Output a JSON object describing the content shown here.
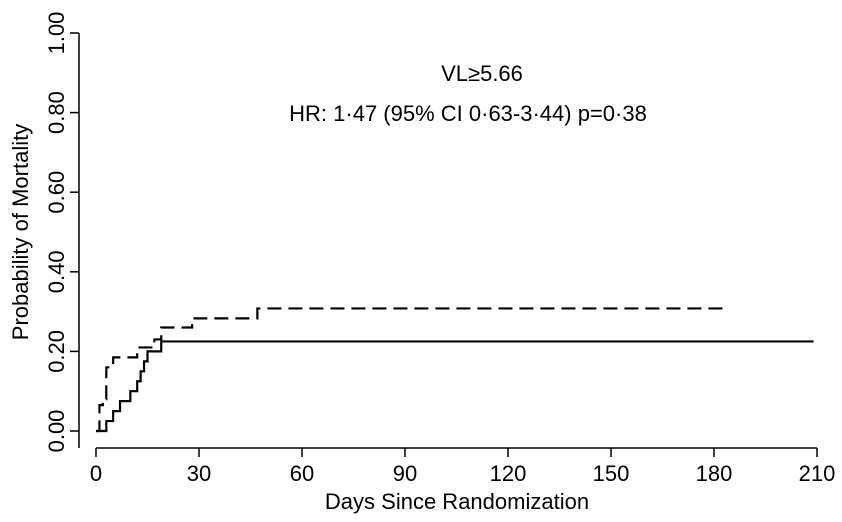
{
  "chart_data": {
    "type": "line",
    "title": "VL≥5.66",
    "subtitle": "HR: 1·47 (95% CI 0·63-3·44) p=0·38",
    "xlabel": "Days Since Randomization",
    "ylabel": "Probability of Mortality",
    "xlim": [
      0,
      210
    ],
    "ylim": [
      0,
      1
    ],
    "grid": false,
    "x_ticks": [
      0,
      30,
      60,
      90,
      120,
      150,
      180,
      210
    ],
    "x_tick_labels": [
      "0",
      "30",
      "60",
      "90",
      "120",
      "150",
      "180",
      "210"
    ],
    "y_ticks": [
      0,
      0.2,
      0.4,
      0.6,
      0.8,
      1.0
    ],
    "y_tick_labels": [
      "0.00",
      "0.20",
      "0.40",
      "0.60",
      "0.80",
      "1.00"
    ],
    "series": [
      {
        "line_style": "solid",
        "step": true,
        "x": [
          0,
          3,
          5,
          7,
          10,
          12,
          13,
          14,
          15,
          16,
          17,
          19,
          209
        ],
        "y": [
          0,
          0.025,
          0.05,
          0.075,
          0.1,
          0.125,
          0.15,
          0.175,
          0.2,
          0.2,
          0.2,
          0.225,
          0.225
        ]
      },
      {
        "line_style": "dashed",
        "step": true,
        "x": [
          0,
          1,
          2,
          3,
          5,
          9,
          12,
          14,
          17,
          19,
          28,
          47,
          184
        ],
        "y": [
          0,
          0.065,
          0.08,
          0.16,
          0.185,
          0.185,
          0.21,
          0.21,
          0.23,
          0.26,
          0.283,
          0.308,
          0.308
        ]
      }
    ]
  }
}
